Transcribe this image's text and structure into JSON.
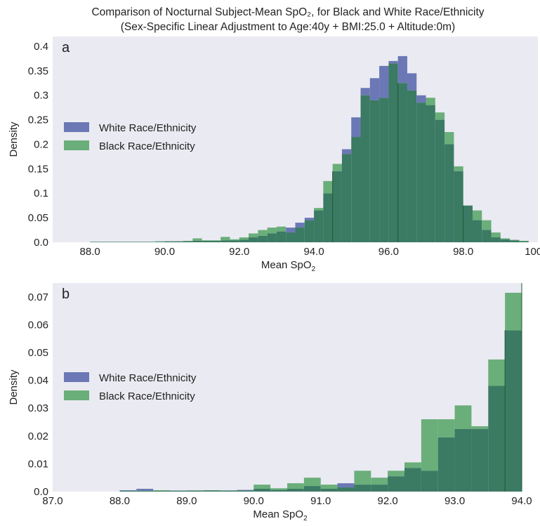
{
  "figure": {
    "title_line1": "Comparison of Nocturnal Subject-Mean SpO₂, for Black and White Race/Ethnicity",
    "title_line2": "(Sex-Specific Linear Adjustment to Age:40y + BMI:25.0 + Altitude:0m)"
  },
  "colors": {
    "white": "#6b78b5",
    "black": "#6aae7a",
    "overlap": "#3b7a63",
    "background": "#eaeaf2",
    "vline": "#1f5a36"
  },
  "chart_data": [
    {
      "type": "bar",
      "panel_label": "a",
      "xlabel": "Mean SpO₂",
      "ylabel": "Density",
      "xlim": [
        87.0,
        100.0
      ],
      "ylim": [
        0,
        0.42
      ],
      "xticks": [
        "88.0",
        "90.0",
        "92.0",
        "94.0",
        "96.0",
        "98.0",
        "100.0"
      ],
      "yticks": [
        "0.0",
        "0.05",
        "0.1",
        "0.15",
        "0.2",
        "0.25",
        "0.3",
        "0.35",
        "0.4"
      ],
      "grid": false,
      "legend_position": "center-left",
      "vlines": [
        94.5,
        96.25,
        98.0
      ],
      "bin_width": 0.25,
      "x": [
        88.0,
        88.25,
        88.5,
        88.75,
        89.0,
        89.25,
        89.5,
        89.75,
        90.0,
        90.25,
        90.5,
        90.75,
        91.0,
        91.25,
        91.5,
        91.75,
        92.0,
        92.25,
        92.5,
        92.75,
        93.0,
        93.25,
        93.5,
        93.75,
        94.0,
        94.25,
        94.5,
        94.75,
        95.0,
        95.25,
        95.5,
        95.75,
        96.0,
        96.25,
        96.5,
        96.75,
        97.0,
        97.25,
        97.5,
        97.75,
        98.0,
        98.25,
        98.5,
        98.75,
        99.0,
        99.25,
        99.5
      ],
      "series": [
        {
          "name": "White Race/Ethnicity",
          "values": [
            0.001,
            0.001,
            0.001,
            0.001,
            0.001,
            0.001,
            0.001,
            0.001,
            0.002,
            0.002,
            0.002,
            0.003,
            0.003,
            0.003,
            0.004,
            0.004,
            0.005,
            0.01,
            0.013,
            0.018,
            0.022,
            0.03,
            0.04,
            0.05,
            0.065,
            0.1,
            0.145,
            0.19,
            0.255,
            0.315,
            0.335,
            0.36,
            0.37,
            0.38,
            0.345,
            0.3,
            0.28,
            0.25,
            0.2,
            0.145,
            0.075,
            0.045,
            0.025,
            0.01,
            0.006,
            0.004,
            0.002
          ]
        },
        {
          "name": "Black Race/Ethnicity",
          "values": [
            0.001,
            0.001,
            0.001,
            0.001,
            0.001,
            0.001,
            0.001,
            0.002,
            0.002,
            0.002,
            0.003,
            0.008,
            0.004,
            0.004,
            0.011,
            0.006,
            0.01,
            0.018,
            0.025,
            0.03,
            0.032,
            0.02,
            0.03,
            0.045,
            0.07,
            0.125,
            0.16,
            0.18,
            0.215,
            0.3,
            0.29,
            0.295,
            0.365,
            0.325,
            0.31,
            0.285,
            0.295,
            0.265,
            0.225,
            0.155,
            0.075,
            0.065,
            0.045,
            0.02,
            0.008,
            0.005,
            0.003
          ]
        }
      ]
    },
    {
      "type": "bar",
      "panel_label": "b",
      "xlabel": "Mean SpO₂",
      "ylabel": "Density",
      "xlim": [
        87.0,
        94.0
      ],
      "ylim": [
        0,
        0.075
      ],
      "xticks": [
        "87.0",
        "88.0",
        "89.0",
        "90.0",
        "91.0",
        "92.0",
        "93.0",
        "94.0"
      ],
      "yticks": [
        "0.0",
        "0.01",
        "0.02",
        "0.03",
        "0.04",
        "0.05",
        "0.06",
        "0.07"
      ],
      "grid": false,
      "legend_position": "center-left",
      "vlines": [
        93.75,
        94.0
      ],
      "bin_width": 0.25,
      "x": [
        88.0,
        88.25,
        88.5,
        88.75,
        89.0,
        89.25,
        89.5,
        89.75,
        90.0,
        90.25,
        90.5,
        90.75,
        91.0,
        91.25,
        91.5,
        91.75,
        92.0,
        92.25,
        92.5,
        92.75,
        93.0,
        93.25,
        93.5,
        93.75
      ],
      "series": [
        {
          "name": "White Race/Ethnicity",
          "values": [
            0.0005,
            0.001,
            0.0003,
            0.0004,
            0.0004,
            0.0004,
            0.0004,
            0.0006,
            0.001,
            0.0006,
            0.001,
            0.002,
            0.001,
            0.003,
            0.0025,
            0.0025,
            0.0055,
            0.0085,
            0.0075,
            0.0195,
            0.0225,
            0.0225,
            0.038,
            0.058
          ]
        },
        {
          "name": "Black Race/Ethnicity",
          "values": [
            0.0003,
            0.0003,
            0.0005,
            0.0003,
            0.0004,
            0.0005,
            0.0004,
            0.0004,
            0.0025,
            0.0012,
            0.003,
            0.005,
            0.0025,
            0.0015,
            0.0075,
            0.005,
            0.0075,
            0.0105,
            0.026,
            0.026,
            0.031,
            0.0235,
            0.0475,
            0.0715
          ]
        }
      ]
    }
  ]
}
